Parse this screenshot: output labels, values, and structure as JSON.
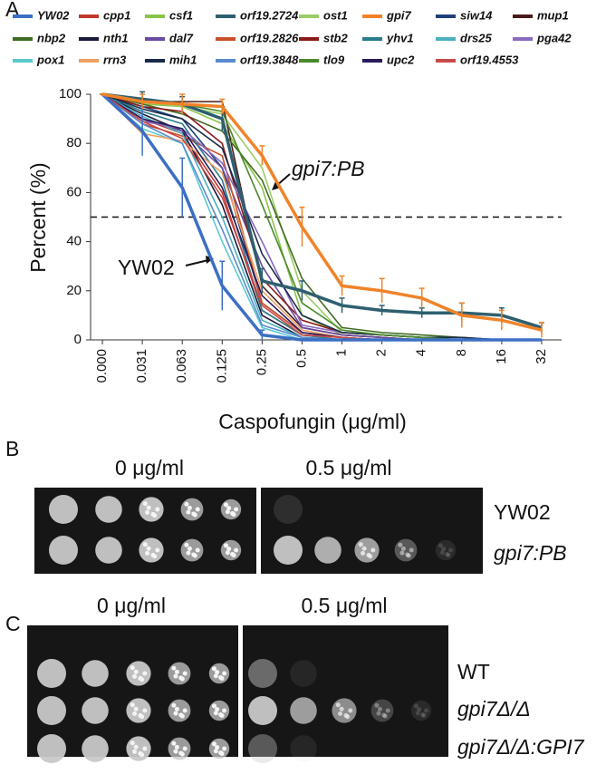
{
  "chart_data": {
    "type": "line",
    "panel_label": "A",
    "y_label": "Percent (%)",
    "x_label": "Caspofungin (μg/ml)",
    "categories": [
      "0.000",
      "0.031",
      "0.063",
      "0.125",
      "0.25",
      "0.5",
      "1",
      "2",
      "4",
      "8",
      "16",
      "32"
    ],
    "ylim": [
      0,
      100
    ],
    "yticks": [
      0,
      20,
      40,
      60,
      80,
      100
    ],
    "hline": 50,
    "annotations": [
      "gpi7:PB",
      "YW02"
    ],
    "series": [
      {
        "name": "YW02",
        "color": "#3b6fc4",
        "values": [
          100,
          85,
          62,
          22,
          2,
          0,
          0,
          0,
          0,
          0,
          0,
          0
        ],
        "errors": [
          0,
          10,
          12,
          10,
          2,
          0,
          0,
          0,
          0,
          0,
          0,
          0
        ]
      },
      {
        "name": "cpp1",
        "color": "#c0392b",
        "values": [
          100,
          90,
          84,
          60,
          12,
          2,
          1,
          0,
          0,
          0,
          0,
          0
        ]
      },
      {
        "name": "csf1",
        "color": "#8bc34a",
        "values": [
          100,
          96,
          95,
          88,
          62,
          10,
          2,
          1,
          0,
          0,
          0,
          0
        ]
      },
      {
        "name": "orf19.2724",
        "color": "#2e5f6f",
        "values": [
          100,
          98,
          96,
          90,
          24,
          20,
          14,
          12,
          11,
          11,
          10,
          5
        ],
        "errors": [
          0,
          3,
          3,
          5,
          5,
          4,
          3,
          2,
          2,
          4,
          3,
          2
        ]
      },
      {
        "name": "ost1",
        "color": "#9ccc65",
        "values": [
          100,
          97,
          95,
          92,
          70,
          20,
          3,
          2,
          1,
          0,
          0,
          0
        ]
      },
      {
        "name": "gpi7",
        "color": "#f0832a",
        "values": [
          100,
          97,
          96,
          95,
          75,
          46,
          22,
          20,
          17,
          10,
          8,
          4
        ],
        "errors": [
          0,
          3,
          4,
          3,
          4,
          8,
          4,
          5,
          4,
          5,
          4,
          3
        ]
      },
      {
        "name": "siw14",
        "color": "#1f3f7a",
        "values": [
          100,
          95,
          90,
          70,
          15,
          3,
          1,
          0,
          0,
          0,
          0,
          0
        ]
      },
      {
        "name": "mup1",
        "color": "#4a1a1a",
        "values": [
          100,
          97,
          97,
          97,
          22,
          5,
          2,
          1,
          0,
          0,
          0,
          0
        ]
      },
      {
        "name": "nbp2",
        "color": "#3f6b22",
        "values": [
          100,
          96,
          92,
          85,
          65,
          25,
          5,
          3,
          2,
          1,
          0,
          0
        ]
      },
      {
        "name": "nth1",
        "color": "#1a1a3a",
        "values": [
          100,
          92,
          85,
          55,
          10,
          1,
          0,
          0,
          0,
          0,
          0,
          0
        ]
      },
      {
        "name": "dal7",
        "color": "#6a4aa0",
        "values": [
          100,
          90,
          85,
          70,
          30,
          5,
          2,
          1,
          0,
          0,
          0,
          0
        ]
      },
      {
        "name": "orf19.2826",
        "color": "#c8502a",
        "values": [
          100,
          88,
          83,
          75,
          15,
          3,
          1,
          0,
          0,
          0,
          0,
          0
        ]
      },
      {
        "name": "stb2",
        "color": "#8b1a1a",
        "values": [
          100,
          95,
          93,
          80,
          25,
          8,
          3,
          2,
          1,
          0,
          0,
          0
        ]
      },
      {
        "name": "yhv1",
        "color": "#2a7b8b",
        "values": [
          100,
          93,
          88,
          65,
          12,
          2,
          0,
          0,
          0,
          0,
          0,
          0
        ]
      },
      {
        "name": "drs25",
        "color": "#4bb0c0",
        "values": [
          100,
          91,
          84,
          50,
          8,
          1,
          0,
          0,
          0,
          0,
          0,
          0
        ]
      },
      {
        "name": "pga42",
        "color": "#8a6ac0",
        "values": [
          100,
          89,
          86,
          72,
          40,
          6,
          3,
          2,
          1,
          0,
          0,
          0
        ]
      },
      {
        "name": "pox1",
        "color": "#5bc8d0",
        "values": [
          100,
          86,
          80,
          40,
          5,
          0,
          0,
          0,
          0,
          0,
          0,
          0
        ]
      },
      {
        "name": "rrn3",
        "color": "#f0a060",
        "values": [
          100,
          84,
          81,
          68,
          20,
          4,
          1,
          0,
          0,
          0,
          0,
          0
        ]
      },
      {
        "name": "mih1",
        "color": "#1a2a4a",
        "values": [
          100,
          94,
          90,
          78,
          35,
          10,
          3,
          2,
          1,
          1,
          0,
          0
        ]
      },
      {
        "name": "orf19.3848",
        "color": "#5a8ad0",
        "values": [
          100,
          88,
          80,
          45,
          6,
          1,
          0,
          0,
          0,
          0,
          0,
          0
        ]
      },
      {
        "name": "tlo9",
        "color": "#4a8a2a",
        "values": [
          100,
          97,
          96,
          93,
          55,
          15,
          4,
          2,
          1,
          0,
          0,
          0
        ]
      },
      {
        "name": "upc2",
        "color": "#2a1a5a",
        "values": [
          100,
          90,
          86,
          62,
          18,
          3,
          1,
          0,
          0,
          0,
          0,
          0
        ]
      },
      {
        "name": "orf19.4553",
        "color": "#c84a4a",
        "values": [
          100,
          89,
          82,
          58,
          14,
          2,
          1,
          0,
          0,
          0,
          0,
          0
        ]
      }
    ]
  },
  "panels": [
    {
      "label": "B",
      "headers": [
        "0 μg/ml",
        "0.5 μg/ml"
      ],
      "strains": [
        "YW02",
        "gpi7:PB"
      ]
    },
    {
      "label": "C",
      "headers": [
        "0 μg/ml",
        "0.5 μg/ml"
      ],
      "strains": [
        "WT",
        "gpi7Δ/Δ",
        "gpi7Δ/Δ:GPI7"
      ]
    }
  ]
}
